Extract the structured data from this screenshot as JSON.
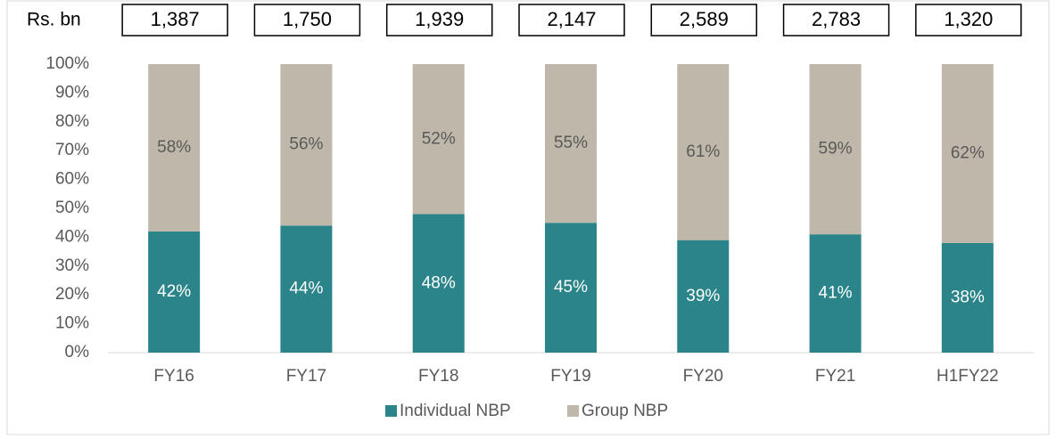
{
  "chart_data": {
    "type": "stacked_bar",
    "categories": [
      "FY16",
      "FY17",
      "FY18",
      "FY19",
      "FY20",
      "FY21",
      "H1FY22"
    ],
    "series": [
      {
        "name": "Individual NBP",
        "color": "#2a8489",
        "values": [
          42,
          44,
          48,
          45,
          39,
          41,
          38
        ],
        "value_labels": [
          "42%",
          "44%",
          "48%",
          "45%",
          "39%",
          "41%",
          "38%"
        ],
        "label_color": "#ffffff"
      },
      {
        "name": "Group NBP",
        "color": "#bfb8aa",
        "values": [
          58,
          56,
          52,
          55,
          61,
          59,
          62
        ],
        "value_labels": [
          "58%",
          "56%",
          "52%",
          "55%",
          "61%",
          "59%",
          "62%"
        ],
        "label_color": "#595959"
      }
    ],
    "totals": {
      "label": "Rs. bn",
      "values": [
        1387,
        1750,
        1939,
        2147,
        2589,
        2783,
        1320
      ],
      "value_labels": [
        "1,387",
        "1,750",
        "1,939",
        "2,147",
        "2,589",
        "2,783",
        "1,320"
      ]
    },
    "ylim": [
      0,
      100
    ],
    "yticks": [
      {
        "value": 0,
        "label": "0%"
      },
      {
        "value": 10,
        "label": "10%"
      },
      {
        "value": 20,
        "label": "20%"
      },
      {
        "value": 30,
        "label": "30%"
      },
      {
        "value": 40,
        "label": "40%"
      },
      {
        "value": 50,
        "label": "50%"
      },
      {
        "value": 60,
        "label": "60%"
      },
      {
        "value": 70,
        "label": "70%"
      },
      {
        "value": 80,
        "label": "80%"
      },
      {
        "value": 90,
        "label": "90%"
      },
      {
        "value": 100,
        "label": "100%"
      }
    ],
    "grid": false,
    "legend": "bottom"
  }
}
